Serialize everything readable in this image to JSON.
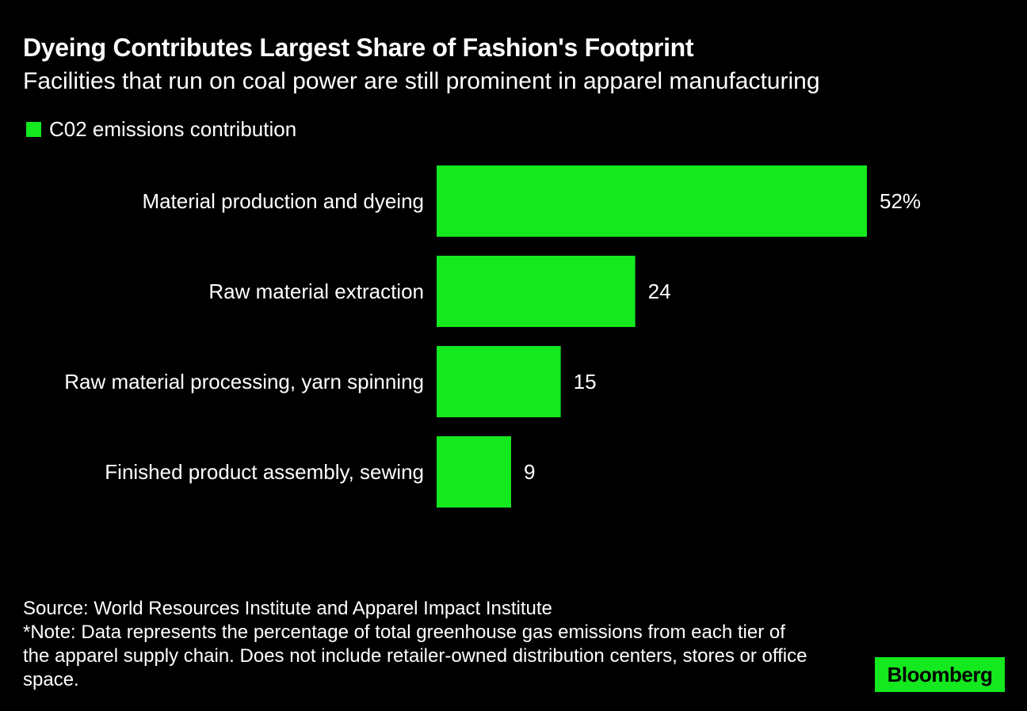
{
  "chart_data": {
    "type": "bar",
    "orientation": "horizontal",
    "title": "Dyeing Contributes Largest Share of Fashion's Footprint",
    "subtitle": "Facilities that run on coal power are still prominent in apparel manufacturing",
    "legend": [
      "C02 emissions contribution"
    ],
    "categories": [
      "Material production and dyeing",
      "Raw material extraction",
      "Raw material processing, yarn spinning",
      "Finished product assembly, sewing"
    ],
    "values": [
      52,
      24,
      15,
      9
    ],
    "value_labels": [
      "52%",
      "24",
      "15",
      "9"
    ],
    "xlim": [
      0,
      52
    ],
    "grid": false,
    "color": "#14e81e"
  },
  "footer": {
    "source": "Source: World Resources Institute and Apparel Impact Institute",
    "note": "*Note: Data represents the percentage of total greenhouse gas emissions from each tier of the apparel supply chain. Does not include retailer-owned distribution centers, stores or office space."
  },
  "logo": "Bloomberg"
}
